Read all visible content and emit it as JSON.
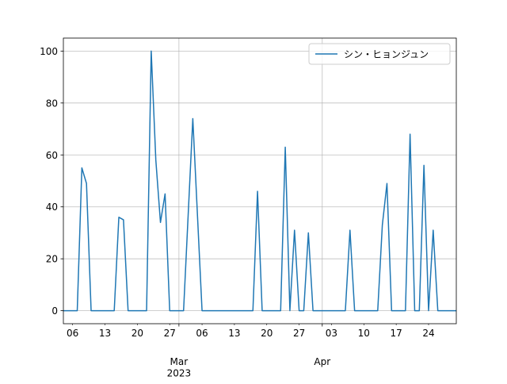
{
  "chart_data": {
    "type": "line",
    "x": [
      "2023-02-04",
      "2023-02-05",
      "2023-02-06",
      "2023-02-07",
      "2023-02-08",
      "2023-02-09",
      "2023-02-10",
      "2023-02-11",
      "2023-02-12",
      "2023-02-13",
      "2023-02-14",
      "2023-02-15",
      "2023-02-16",
      "2023-02-17",
      "2023-02-18",
      "2023-02-19",
      "2023-02-20",
      "2023-02-21",
      "2023-02-22",
      "2023-02-23",
      "2023-02-24",
      "2023-02-25",
      "2023-02-26",
      "2023-02-27",
      "2023-02-28",
      "2023-03-01",
      "2023-03-02",
      "2023-03-03",
      "2023-03-04",
      "2023-03-05",
      "2023-03-06",
      "2023-03-07",
      "2023-03-08",
      "2023-03-09",
      "2023-03-10",
      "2023-03-11",
      "2023-03-12",
      "2023-03-13",
      "2023-03-14",
      "2023-03-15",
      "2023-03-16",
      "2023-03-17",
      "2023-03-18",
      "2023-03-19",
      "2023-03-20",
      "2023-03-21",
      "2023-03-22",
      "2023-03-23",
      "2023-03-24",
      "2023-03-25",
      "2023-03-26",
      "2023-03-27",
      "2023-03-28",
      "2023-03-29",
      "2023-03-30",
      "2023-03-31",
      "2023-04-01",
      "2023-04-02",
      "2023-04-03",
      "2023-04-04",
      "2023-04-05",
      "2023-04-06",
      "2023-04-07",
      "2023-04-08",
      "2023-04-09",
      "2023-04-10",
      "2023-04-11",
      "2023-04-12",
      "2023-04-13",
      "2023-04-14",
      "2023-04-15",
      "2023-04-16",
      "2023-04-17",
      "2023-04-18",
      "2023-04-19",
      "2023-04-20",
      "2023-04-21",
      "2023-04-22",
      "2023-04-23",
      "2023-04-24",
      "2023-04-25",
      "2023-04-26",
      "2023-04-27",
      "2023-04-28",
      "2023-04-29",
      "2023-04-30"
    ],
    "series": [
      {
        "name": "シン・ヒョンジュン",
        "color": "#1f77b4",
        "values": [
          0,
          0,
          0,
          0,
          55,
          49,
          0,
          0,
          0,
          0,
          0,
          0,
          36,
          35,
          0,
          0,
          0,
          0,
          0,
          100,
          58,
          34,
          45,
          0,
          0,
          0,
          0,
          37,
          74,
          37,
          0,
          0,
          0,
          0,
          0,
          0,
          0,
          0,
          0,
          0,
          0,
          0,
          46,
          0,
          0,
          0,
          0,
          0,
          63,
          0,
          31,
          0,
          0,
          30,
          0,
          0,
          0,
          0,
          0,
          0,
          0,
          0,
          31,
          0,
          0,
          0,
          0,
          0,
          0,
          33,
          49,
          0,
          0,
          0,
          0,
          68,
          0,
          0,
          56,
          0,
          31,
          0,
          0,
          0,
          0,
          0
        ]
      }
    ],
    "xlim": [
      "2023-02-04",
      "2023-04-30"
    ],
    "xticks": [
      {
        "value": "2023-02-06",
        "label": "06"
      },
      {
        "value": "2023-02-13",
        "label": "13"
      },
      {
        "value": "2023-02-20",
        "label": "20"
      },
      {
        "value": "2023-02-27",
        "label": "27"
      },
      {
        "value": "2023-03-06",
        "label": "06"
      },
      {
        "value": "2023-03-13",
        "label": "13"
      },
      {
        "value": "2023-03-20",
        "label": "20"
      },
      {
        "value": "2023-03-27",
        "label": "27"
      },
      {
        "value": "2023-04-03",
        "label": "03"
      },
      {
        "value": "2023-04-10",
        "label": "10"
      },
      {
        "value": "2023-04-17",
        "label": "17"
      },
      {
        "value": "2023-04-24",
        "label": "24"
      }
    ],
    "xticks_major": [
      {
        "value": "2023-03-01",
        "label": "Mar\n2023"
      },
      {
        "value": "2023-04-01",
        "label": "Apr"
      }
    ],
    "ylim": [
      -5,
      105
    ],
    "yticks": [
      0,
      20,
      40,
      60,
      80,
      100
    ],
    "grid": true,
    "legend": "upper right"
  }
}
